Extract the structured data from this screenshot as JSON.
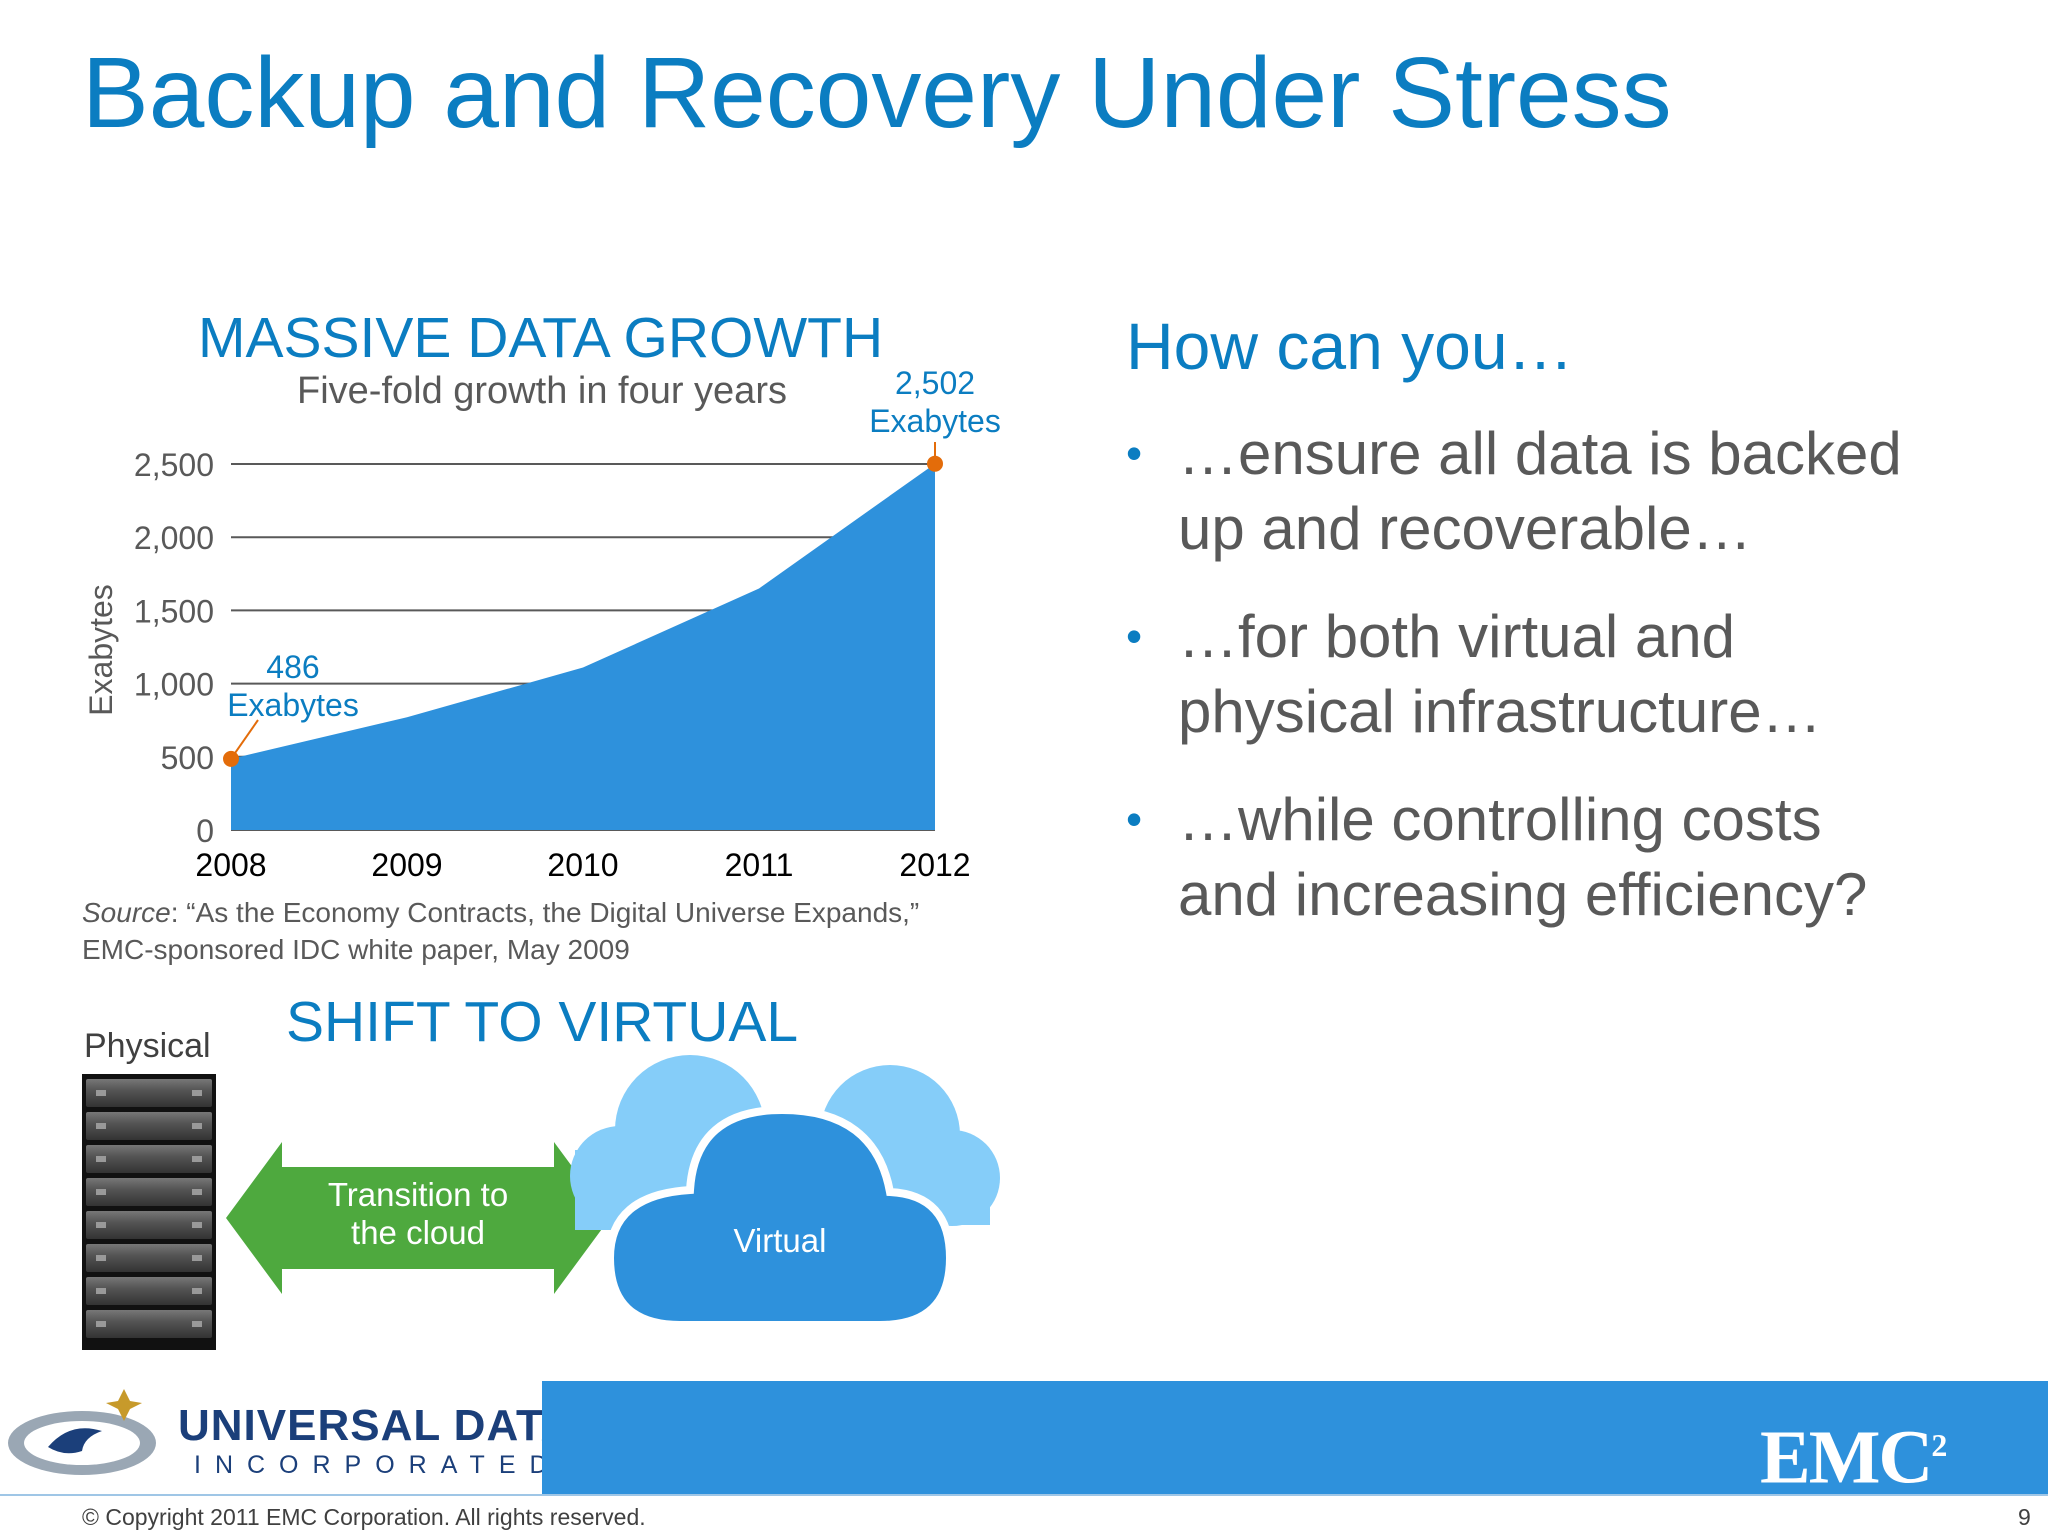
{
  "title": "Backup and Recovery Under Stress",
  "growth_section": {
    "heading": "MASSIVE DATA GROWTH",
    "subtitle": "Five-fold growth in four years",
    "source_label": "Source",
    "source_rest": ": “As the Economy Contracts, the Digital Universe Expands,”",
    "source_line2": "EMC-sponsored IDC white paper, May 2009"
  },
  "chart_data": {
    "type": "area",
    "title": "MASSIVE DATA GROWTH",
    "subtitle": "Five-fold growth in four years",
    "ylabel": "Exabytes",
    "xlabel": "",
    "categories": [
      "2008",
      "2009",
      "2010",
      "2011",
      "2012"
    ],
    "values": [
      486,
      770,
      1110,
      1650,
      2502
    ],
    "ylim": [
      0,
      2500
    ],
    "yticks": [
      0,
      500,
      1000,
      1500,
      2000,
      2500
    ],
    "ytick_labels": [
      "0",
      "500",
      "1,000",
      "1,500",
      "2,000",
      "2,500"
    ],
    "grid": true,
    "annotations": [
      {
        "index": 0,
        "value_text": "486",
        "unit_text": "Exabytes"
      },
      {
        "index": 4,
        "value_text": "2,502",
        "unit_text": "Exabytes"
      }
    ],
    "colors": {
      "area": "#2e91dc",
      "marker": "#e36c0a",
      "axis_text": "#595959",
      "label": "#0b7dc1"
    }
  },
  "virtual_section": {
    "heading": "SHIFT TO VIRTUAL",
    "physical_label": "Physical",
    "transition_line1": "Transition to",
    "transition_line2": "the cloud",
    "virtual_label": "Virtual",
    "colors": {
      "arrow": "#4ea93e",
      "cloud_front": "#2e91dc",
      "cloud_back": "#85cdf9"
    }
  },
  "questions": {
    "heading": "How can you…",
    "bullets": [
      {
        "line1": "…ensure all data is backed",
        "line2": "up and recoverable…"
      },
      {
        "line1": "…for both virtual and",
        "line2": "physical infrastructure…"
      },
      {
        "line1": "…while controlling costs",
        "line2": "and increasing efficiency?"
      }
    ]
  },
  "footer": {
    "partner_name": "UNIVERSAL DATA",
    "partner_sub": "INCORPORATED",
    "brand": "EMC",
    "brand_sup": "2",
    "copyright": "© Copyright 2011 EMC Corporation. All rights reserved.",
    "page_number": "9",
    "band_color": "#2e91dc"
  }
}
